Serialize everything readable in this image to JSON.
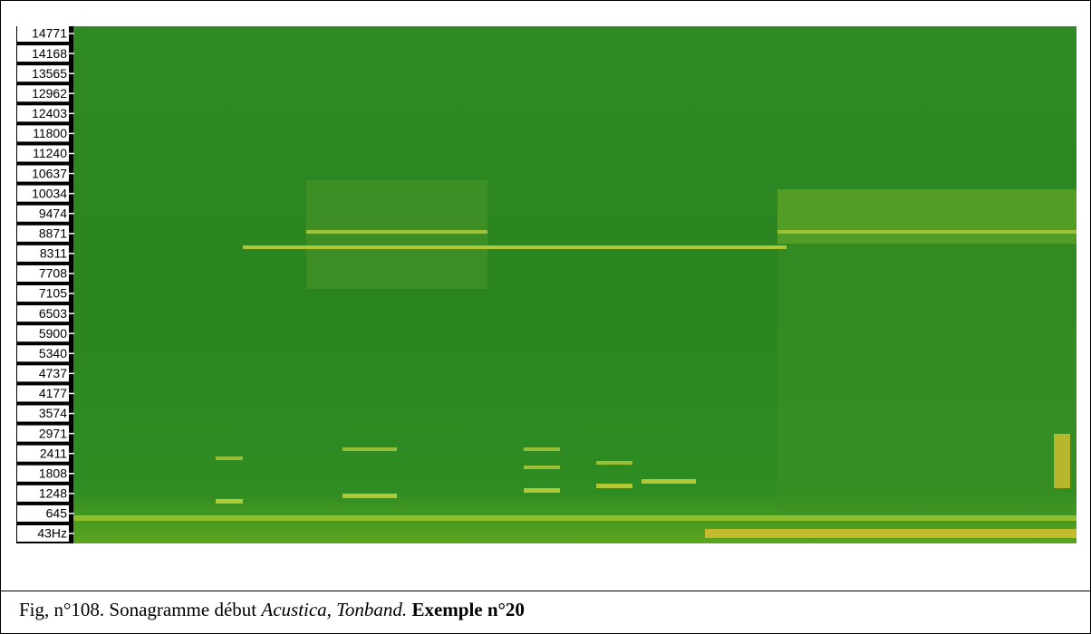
{
  "figure": {
    "frequency_labels": [
      "14771",
      "14168",
      "13565",
      "12962",
      "12403",
      "11800",
      "11240",
      "10637",
      "10034",
      "9474",
      "8871",
      "8311",
      "7708",
      "7105",
      "6503",
      "5900",
      "5340",
      "4737",
      "4177",
      "3574",
      "2971",
      "2411",
      "1808",
      "1248",
      "645",
      "43Hz"
    ]
  },
  "caption": {
    "prefix": "Fig, n°108. Sonagramme début ",
    "italic": "Acustica, Tonband.",
    "bold": "Exemple n°20"
  }
}
